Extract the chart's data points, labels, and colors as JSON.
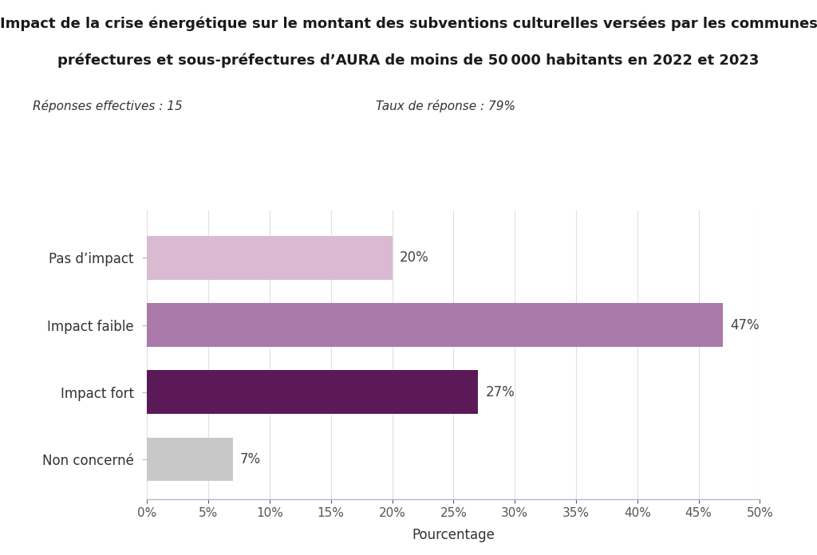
{
  "title_line1": "Impact de la crise énergétique sur le montant des subventions culturelles versées par les communes",
  "title_line2": "préfectures et sous-préfectures d’AURA de moins de 50 000 habitants en 2022 et 2023",
  "subtitle_left": "Réponses effectives : 15",
  "subtitle_right": "Taux de réponse : 79%",
  "categories": [
    "Pas d’impact",
    "Impact faible",
    "Impact fort",
    "Non concerné"
  ],
  "values": [
    20,
    47,
    27,
    7
  ],
  "bar_colors": [
    "#d9bad0",
    "#a97aaa",
    "#5c1958",
    "#c8c8c8"
  ],
  "xlabel": "Pourcentage",
  "xlim": [
    0,
    50
  ],
  "xticks": [
    0,
    5,
    10,
    15,
    20,
    25,
    30,
    35,
    40,
    45,
    50
  ],
  "background_color": "#ffffff",
  "title_fontsize": 13,
  "subtitle_fontsize": 11,
  "label_fontsize": 12,
  "bar_label_fontsize": 12,
  "tick_fontsize": 11,
  "xlabel_fontsize": 12
}
